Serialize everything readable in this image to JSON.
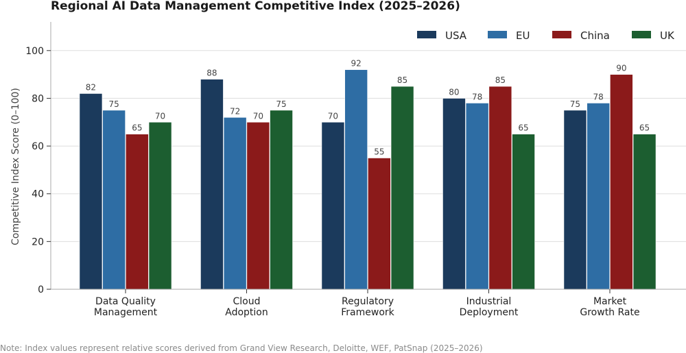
{
  "chart_data": {
    "type": "bar",
    "title": "Regional AI Data Management Competitive Index (2025–2026)",
    "xlabel": "",
    "ylabel": "Competitive Index Score (0–100)",
    "ylim": [
      0,
      112
    ],
    "yticks": [
      0,
      20,
      40,
      60,
      80,
      100
    ],
    "grid": true,
    "legend_position": "top-right",
    "categories": [
      [
        "Data Quality",
        "Management"
      ],
      [
        "Cloud",
        "Adoption"
      ],
      [
        "Regulatory",
        "Framework"
      ],
      [
        "Industrial",
        "Deployment"
      ],
      [
        "Market",
        "Growth Rate"
      ]
    ],
    "series": [
      {
        "name": "USA",
        "color": "#1b3a5c",
        "values": [
          82,
          88,
          70,
          80,
          75
        ]
      },
      {
        "name": "EU",
        "color": "#2e6da4",
        "values": [
          75,
          72,
          92,
          78,
          78
        ]
      },
      {
        "name": "China",
        "color": "#8b1a1a",
        "values": [
          65,
          70,
          55,
          85,
          90
        ]
      },
      {
        "name": "UK",
        "color": "#1c5e30",
        "values": [
          70,
          75,
          85,
          65,
          65
        ]
      }
    ],
    "note": "Note: Index values represent relative scores derived from Grand View Research, Deloitte, WEF, PatSnap (2025–2026)"
  }
}
